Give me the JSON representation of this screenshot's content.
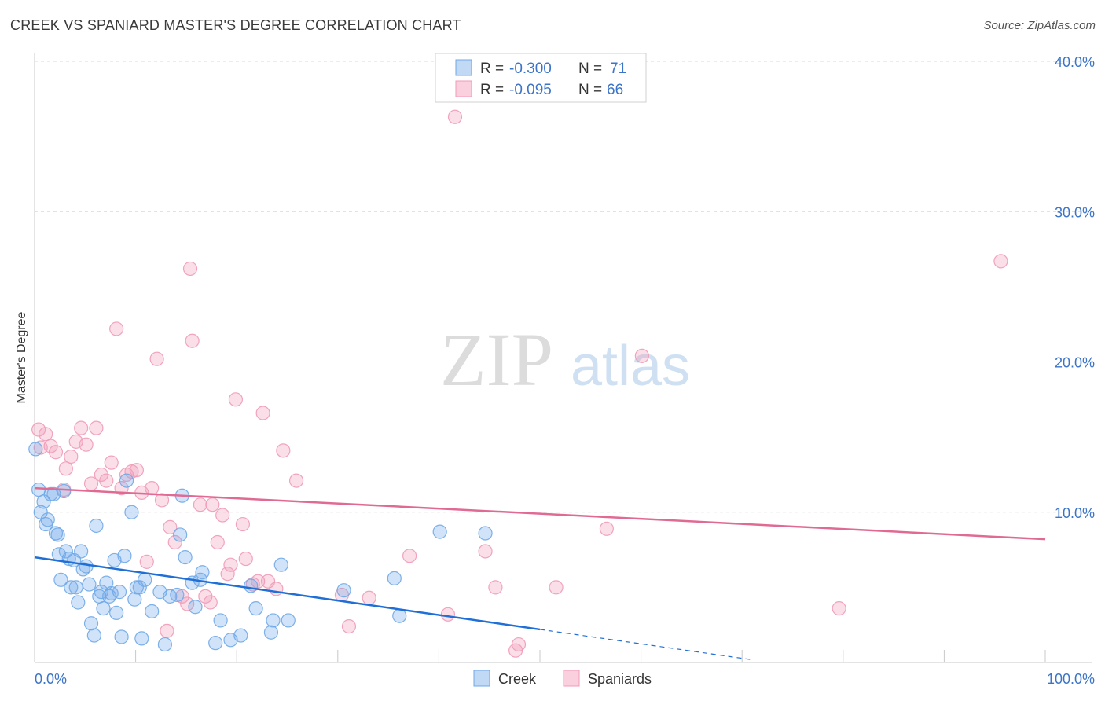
{
  "title": "CREEK VS SPANIARD MASTER'S DEGREE CORRELATION CHART",
  "source": "Source: ZipAtlas.com",
  "watermark": {
    "zip": "ZIP",
    "atlas": "atlas"
  },
  "colors": {
    "creek": "#6fa8e8",
    "creek_line": "#1f6fd6",
    "spaniards": "#f19ab6",
    "spaniards_line": "#e06a94",
    "tick_label": "#3b74c9",
    "grid": "#d9d9d9"
  },
  "legend": {
    "rows": [
      {
        "r_label": "R = ",
        "r_value": "-0.300",
        "n_label": "N = ",
        "n_value": "71"
      },
      {
        "r_label": "R = ",
        "r_value": "-0.095",
        "n_label": "N = ",
        "n_value": "66"
      }
    ]
  },
  "chart_data": {
    "type": "scatter",
    "title": "CREEK VS SPANIARD MASTER'S DEGREE CORRELATION CHART",
    "xlabel": "",
    "ylabel": "Master's Degree",
    "xlim": [
      0,
      100
    ],
    "ylim": [
      0,
      40
    ],
    "x_tick_labels": [
      "0.0%",
      "100.0%"
    ],
    "y_ticks": [
      10,
      20,
      30,
      40
    ],
    "y_tick_labels": [
      "10.0%",
      "20.0%",
      "30.0%",
      "40.0%"
    ],
    "grid": true,
    "legend_position": "top-center",
    "series": [
      {
        "name": "Creek",
        "r": -0.3,
        "n": 71,
        "trend": {
          "x0": 0,
          "y0": 7.0,
          "x1": 50,
          "y1": 2.2,
          "dashed_to_x": 71
        },
        "points": [
          [
            0.1,
            14.2
          ],
          [
            0.4,
            11.5
          ],
          [
            0.6,
            10.0
          ],
          [
            0.9,
            10.7
          ],
          [
            1.1,
            9.2
          ],
          [
            1.3,
            9.5
          ],
          [
            1.6,
            11.2
          ],
          [
            1.9,
            11.2
          ],
          [
            2.1,
            8.6
          ],
          [
            2.3,
            8.5
          ],
          [
            2.4,
            7.2
          ],
          [
            2.6,
            5.5
          ],
          [
            2.9,
            11.4
          ],
          [
            3.1,
            7.4
          ],
          [
            3.4,
            6.9
          ],
          [
            3.6,
            5.0
          ],
          [
            3.9,
            6.8
          ],
          [
            4.1,
            5.0
          ],
          [
            4.3,
            4.0
          ],
          [
            4.6,
            7.4
          ],
          [
            4.8,
            6.2
          ],
          [
            5.1,
            6.4
          ],
          [
            5.4,
            5.2
          ],
          [
            5.6,
            2.6
          ],
          [
            5.9,
            1.8
          ],
          [
            6.1,
            9.1
          ],
          [
            6.4,
            4.4
          ],
          [
            6.6,
            4.7
          ],
          [
            6.8,
            3.6
          ],
          [
            7.1,
            5.3
          ],
          [
            7.4,
            4.4
          ],
          [
            7.6,
            4.6
          ],
          [
            7.9,
            6.8
          ],
          [
            8.1,
            3.3
          ],
          [
            8.4,
            4.7
          ],
          [
            8.6,
            1.7
          ],
          [
            8.9,
            7.1
          ],
          [
            9.1,
            12.1
          ],
          [
            9.6,
            10.0
          ],
          [
            9.9,
            4.2
          ],
          [
            10.1,
            5.0
          ],
          [
            10.4,
            5.0
          ],
          [
            10.6,
            1.6
          ],
          [
            10.9,
            5.5
          ],
          [
            11.6,
            3.4
          ],
          [
            12.4,
            4.7
          ],
          [
            12.9,
            1.2
          ],
          [
            13.4,
            4.4
          ],
          [
            14.1,
            4.5
          ],
          [
            14.4,
            8.5
          ],
          [
            14.6,
            11.1
          ],
          [
            14.9,
            7.0
          ],
          [
            15.6,
            5.3
          ],
          [
            15.9,
            3.7
          ],
          [
            16.4,
            5.5
          ],
          [
            16.6,
            6.0
          ],
          [
            17.9,
            1.3
          ],
          [
            18.4,
            2.8
          ],
          [
            19.4,
            1.5
          ],
          [
            20.4,
            1.8
          ],
          [
            21.4,
            5.1
          ],
          [
            21.9,
            3.6
          ],
          [
            23.4,
            2.0
          ],
          [
            23.6,
            2.8
          ],
          [
            24.4,
            6.5
          ],
          [
            25.1,
            2.8
          ],
          [
            30.6,
            4.8
          ],
          [
            35.6,
            5.6
          ],
          [
            40.1,
            8.7
          ],
          [
            44.6,
            8.6
          ],
          [
            36.1,
            3.1
          ]
        ]
      },
      {
        "name": "Spaniards",
        "r": -0.095,
        "n": 66,
        "trend": {
          "x0": 0,
          "y0": 11.6,
          "x1": 100,
          "y1": 8.2
        },
        "points": [
          [
            0.4,
            15.5
          ],
          [
            0.6,
            14.3
          ],
          [
            1.1,
            15.2
          ],
          [
            1.6,
            14.4
          ],
          [
            2.1,
            14.0
          ],
          [
            2.9,
            11.5
          ],
          [
            3.1,
            12.9
          ],
          [
            3.6,
            13.7
          ],
          [
            4.1,
            14.7
          ],
          [
            4.6,
            15.6
          ],
          [
            5.1,
            14.5
          ],
          [
            5.6,
            11.9
          ],
          [
            6.1,
            15.6
          ],
          [
            6.6,
            12.5
          ],
          [
            7.1,
            12.1
          ],
          [
            7.6,
            13.3
          ],
          [
            8.1,
            22.2
          ],
          [
            8.6,
            11.6
          ],
          [
            9.1,
            12.5
          ],
          [
            9.6,
            12.7
          ],
          [
            10.1,
            12.8
          ],
          [
            10.6,
            11.3
          ],
          [
            11.1,
            6.7
          ],
          [
            11.6,
            11.6
          ],
          [
            12.1,
            20.2
          ],
          [
            12.6,
            10.8
          ],
          [
            13.1,
            2.1
          ],
          [
            13.4,
            9.0
          ],
          [
            13.9,
            8.0
          ],
          [
            14.6,
            4.4
          ],
          [
            15.1,
            3.9
          ],
          [
            15.4,
            26.2
          ],
          [
            15.6,
            21.4
          ],
          [
            16.4,
            10.5
          ],
          [
            16.9,
            4.4
          ],
          [
            17.4,
            4.0
          ],
          [
            17.6,
            10.5
          ],
          [
            18.1,
            8.0
          ],
          [
            18.6,
            9.8
          ],
          [
            19.1,
            5.9
          ],
          [
            19.4,
            6.5
          ],
          [
            19.9,
            17.5
          ],
          [
            20.6,
            9.2
          ],
          [
            20.9,
            6.9
          ],
          [
            21.6,
            5.2
          ],
          [
            22.1,
            5.4
          ],
          [
            22.6,
            16.6
          ],
          [
            23.1,
            5.4
          ],
          [
            23.9,
            4.9
          ],
          [
            24.6,
            14.1
          ],
          [
            25.9,
            12.1
          ],
          [
            30.4,
            4.5
          ],
          [
            31.1,
            2.4
          ],
          [
            33.1,
            4.3
          ],
          [
            37.1,
            7.1
          ],
          [
            40.9,
            3.2
          ],
          [
            41.6,
            36.3
          ],
          [
            44.6,
            7.4
          ],
          [
            45.6,
            5.0
          ],
          [
            47.6,
            0.8
          ],
          [
            47.9,
            1.2
          ],
          [
            51.6,
            5.0
          ],
          [
            56.6,
            8.9
          ],
          [
            60.1,
            20.4
          ],
          [
            79.6,
            3.6
          ],
          [
            95.6,
            26.7
          ]
        ]
      }
    ]
  }
}
